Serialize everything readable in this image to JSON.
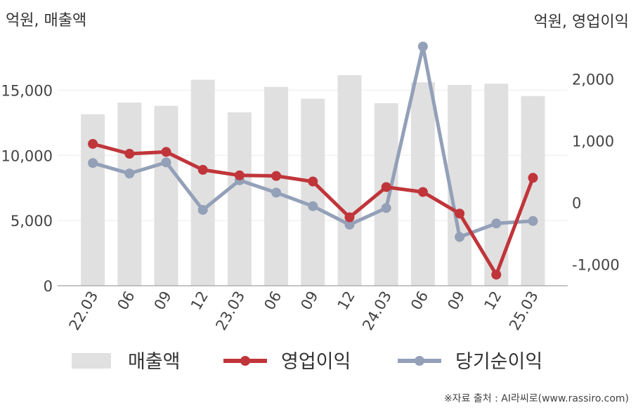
{
  "chart_data": {
    "type": "bar+line",
    "left_axis_unit": "억원, 매출액",
    "right_axis_unit": "억원, 영업이익",
    "categories": [
      "22.03",
      "06",
      "09",
      "12",
      "23.03",
      "06",
      "09",
      "12",
      "24.03",
      "06",
      "09",
      "12",
      "25.03"
    ],
    "left_axis": {
      "ticks": [
        "0",
        "5,000",
        "10,000",
        "15,000"
      ],
      "tick_values": [
        0,
        5000,
        10000,
        15000
      ],
      "ylim": [
        0,
        17500
      ]
    },
    "right_axis": {
      "ticks": [
        "-1,000",
        "0",
        "1,000",
        "2,000"
      ],
      "tick_values": [
        -1000,
        0,
        1000,
        2000
      ],
      "ylim": [
        -1350,
        2350
      ]
    },
    "series": [
      {
        "name": "매출액",
        "kind": "bar",
        "axis": "left",
        "color": "#e0e0e0",
        "values": [
          13150,
          14050,
          13800,
          15800,
          13300,
          15250,
          14350,
          16150,
          14000,
          15600,
          15400,
          15500,
          14550
        ]
      },
      {
        "name": "영업이익",
        "kind": "line",
        "axis": "right",
        "color": "#c0353a",
        "values": [
          950,
          790,
          820,
          530,
          440,
          430,
          340,
          -240,
          250,
          170,
          -180,
          -1170,
          400
        ]
      },
      {
        "name": "당기순이익",
        "kind": "line",
        "axis": "right",
        "color": "#93a0b8",
        "values": [
          640,
          470,
          650,
          -120,
          360,
          160,
          -60,
          -360,
          -90,
          2530,
          -560,
          -340,
          -300
        ]
      }
    ],
    "legend_position": "bottom",
    "grid": true
  },
  "source_note": "※자료 출처 : AI라씨로(www.rassiro.com)"
}
